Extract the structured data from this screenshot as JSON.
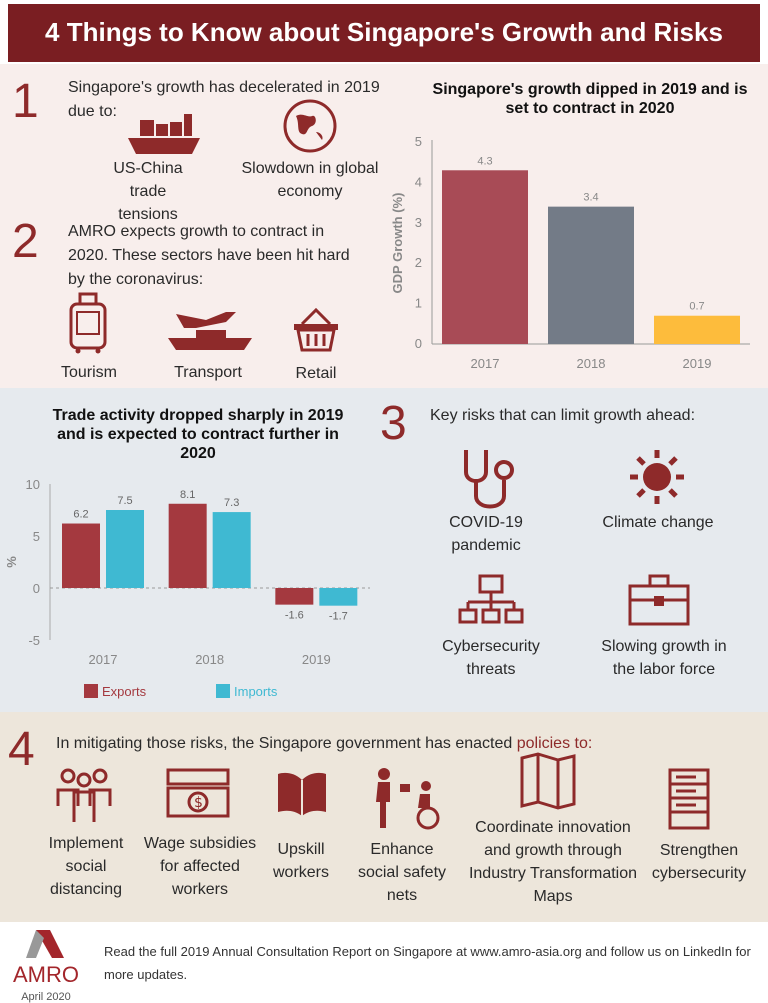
{
  "header": {
    "title": "4 Things to Know about Singapore's Growth and Risks"
  },
  "section1": {
    "number": "1",
    "text": "Singapore's growth has decelerated in 2019 due to:",
    "items": [
      {
        "label": "US-China trade tensions",
        "icon": "cargo-ship-icon"
      },
      {
        "label": "Slowdown in global economy",
        "icon": "globe-icon"
      }
    ]
  },
  "section2": {
    "number": "2",
    "text": "AMRO expects growth to contract in 2020. These sectors have been hit hard by the coronavirus:",
    "items": [
      {
        "label": "Tourism",
        "icon": "luggage-icon"
      },
      {
        "label": "Transport",
        "icon": "plane-ship-icon"
      },
      {
        "label": "Retail",
        "icon": "basket-icon"
      }
    ]
  },
  "section3": {
    "number": "3",
    "text": "Key risks that can limit growth ahead:",
    "items": [
      {
        "label": "COVID-19 pandemic",
        "icon": "stethoscope-icon"
      },
      {
        "label": "Climate change",
        "icon": "sun-icon"
      },
      {
        "label": "Cybersecurity threats",
        "icon": "network-icon"
      },
      {
        "label": "Slowing growth in the labor force",
        "icon": "briefcase-icon"
      }
    ]
  },
  "section4": {
    "number": "4",
    "text": "In mitigating those risks, the Singapore government has enacted ",
    "highlight": "policies to:",
    "items": [
      {
        "label": "Implement social distancing",
        "icon": "people-icon"
      },
      {
        "label": "Wage subsidies for affected workers",
        "icon": "money-icon"
      },
      {
        "label": "Upskill workers",
        "icon": "book-icon"
      },
      {
        "label": "Enhance social safety nets",
        "icon": "wheelchair-icon"
      },
      {
        "label": "Coordinate innovation and growth through Industry Transformation Maps",
        "icon": "map-icon"
      },
      {
        "label": "Strengthen cybersecurity",
        "icon": "server-icon"
      }
    ]
  },
  "footer": {
    "logo": "AMRO",
    "date": "April 2020",
    "text": "Read the full 2019 Annual Consultation Report on Singapore at www.amro-asia.org and follow us on LinkedIn for more updates."
  },
  "chart_data": [
    {
      "type": "bar",
      "title": "Singapore's growth dipped in 2019 and is set to contract in 2020",
      "ylabel": "GDP Growth (%)",
      "xlabel": "",
      "categories": [
        "2017",
        "2018",
        "2019"
      ],
      "values": [
        4.3,
        3.4,
        0.7
      ],
      "value_labels": [
        "4.3",
        "3.4",
        "0.7"
      ],
      "colors": [
        "#a84b56",
        "#737b87",
        "#fdbc3c"
      ],
      "ylim": [
        0,
        5
      ],
      "yticks": [
        "0",
        "1",
        "2",
        "3",
        "4",
        "5"
      ],
      "grid": false
    },
    {
      "type": "bar",
      "title": "Trade activity dropped sharply in 2019 and is expected to contract further in 2020",
      "ylabel": "%",
      "xlabel": "",
      "categories": [
        "2017",
        "2018",
        "2019"
      ],
      "series": [
        {
          "name": "Exports",
          "values": [
            6.2,
            8.1,
            -1.6
          ],
          "labels": [
            "6.2",
            "8.1",
            "-1.6"
          ],
          "color": "#a4393f"
        },
        {
          "name": "Imports",
          "values": [
            7.5,
            7.3,
            -1.7
          ],
          "labels": [
            "7.5",
            "7.3",
            "-1.7"
          ],
          "color": "#3fb9d2"
        }
      ],
      "ylim": [
        -5,
        10
      ],
      "yticks": [
        "-5",
        "0",
        "5",
        "10"
      ],
      "legend": "bottom",
      "grid": false
    }
  ]
}
